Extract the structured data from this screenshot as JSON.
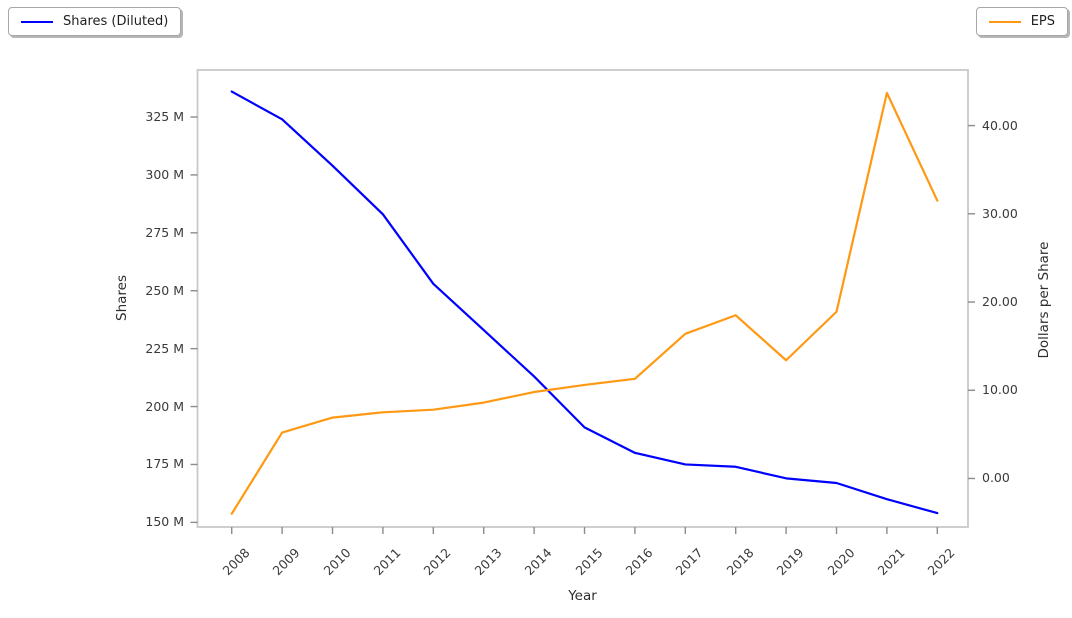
{
  "legend": {
    "shares_label": "Shares (Diluted)",
    "eps_label": "EPS"
  },
  "chart_data": {
    "type": "line",
    "title": "",
    "grid": false,
    "x_axis": {
      "label": "Year",
      "range": [
        2007.321,
        2022.609
      ]
    },
    "x": [
      2008,
      2009,
      2010,
      2011,
      2012,
      2013,
      2014,
      2015,
      2016,
      2017,
      2018,
      2019,
      2020,
      2021,
      2022
    ],
    "x_tick_labels": [
      "2008",
      "2009",
      "2010",
      "2011",
      "2012",
      "2013",
      "2014",
      "2015",
      "2016",
      "2017",
      "2018",
      "2019",
      "2020",
      "2021",
      "2022"
    ],
    "series": [
      {
        "name": "Shares (Diluted)",
        "slug": "shares-diluted",
        "axis": "left",
        "color": "#0000ff",
        "unit": "millions of shares",
        "values": [
          336,
          324,
          304,
          283,
          253,
          233,
          213,
          191,
          180,
          175,
          174,
          169,
          167,
          160,
          154
        ],
        "legend_position": "upper-left-outside"
      },
      {
        "name": "EPS",
        "slug": "eps",
        "axis": "right",
        "color": "#ff9913",
        "unit": "dollars per share",
        "values": [
          -4.0,
          5.2,
          6.9,
          7.5,
          7.8,
          8.6,
          9.8,
          10.6,
          11.3,
          16.4,
          18.5,
          13.4,
          18.9,
          43.7,
          31.5
        ],
        "legend_position": "upper-right-outside"
      }
    ],
    "left_axis": {
      "label": "Shares",
      "ticks": [
        150,
        175,
        200,
        225,
        250,
        275,
        300,
        325
      ],
      "tick_labels": [
        "150 M",
        "175 M",
        "200 M",
        "225 M",
        "250 M",
        "275 M",
        "300 M",
        "325 M"
      ],
      "range": [
        148,
        345.3
      ]
    },
    "right_axis": {
      "label": "Dollars per Share",
      "ticks": [
        0,
        10,
        20,
        30,
        40
      ],
      "tick_labels": [
        "0.00",
        "10.00",
        "20.00",
        "30.00",
        "40.00"
      ],
      "range": [
        -5.5,
        46.3
      ]
    }
  }
}
